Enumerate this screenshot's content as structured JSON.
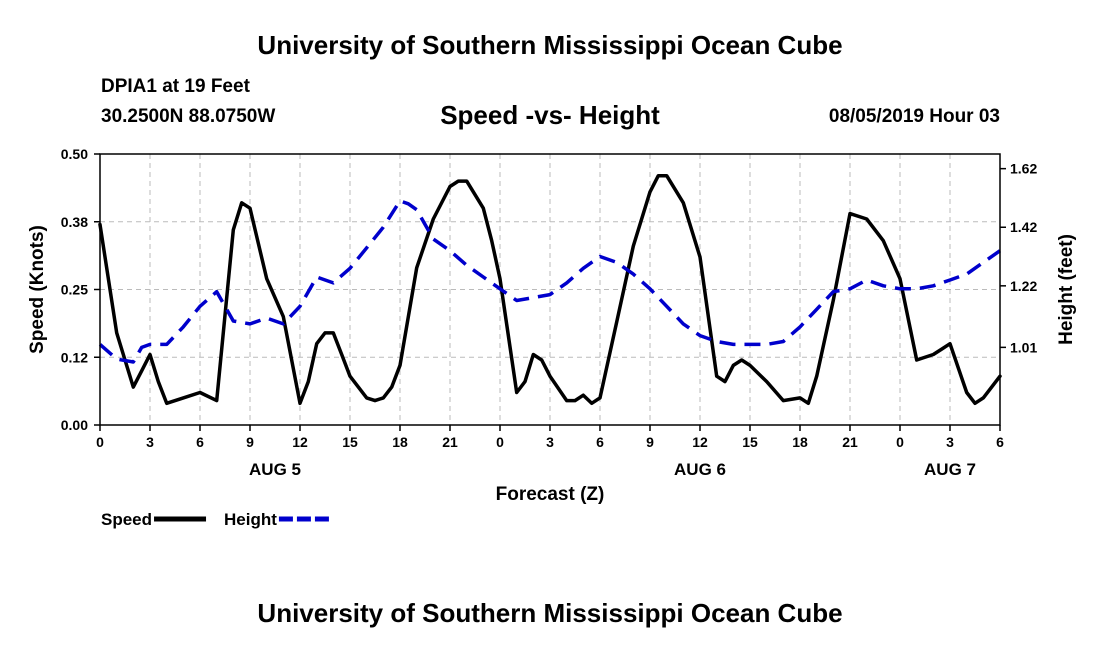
{
  "header": {
    "title": "University of Southern Mississippi Ocean Cube",
    "station": "DPIA1 at 19 Feet",
    "coords": "30.2500N 88.0750W",
    "datetime": "08/05/2019 Hour 03"
  },
  "footer": {
    "title": "University of Southern Mississippi Ocean Cube"
  },
  "chart_data": {
    "type": "line",
    "title": "Speed -vs- Height",
    "xlabel": "Forecast (Z)",
    "ylabel": "Speed (Knots)",
    "ylabel_right": "Height (feet)",
    "x_ticks": [
      "0",
      "3",
      "6",
      "9",
      "12",
      "15",
      "18",
      "21",
      "0",
      "3",
      "6",
      "9",
      "12",
      "15",
      "18",
      "21",
      "0",
      "3",
      "6"
    ],
    "x_tick_hours": [
      0,
      3,
      6,
      9,
      12,
      15,
      18,
      21,
      24,
      27,
      30,
      33,
      36,
      39,
      42,
      45,
      48,
      51,
      54
    ],
    "date_labels": [
      {
        "label": "AUG 5",
        "hour": 10.5
      },
      {
        "label": "AUG 6",
        "hour": 36
      },
      {
        "label": "AUG 7",
        "hour": 51
      }
    ],
    "xlim": [
      0,
      54
    ],
    "ylim": [
      0,
      0.5
    ],
    "y_ticks": [
      "0.00",
      "0.12",
      "0.25",
      "0.38",
      "0.50"
    ],
    "y_tick_values": [
      0,
      0.125,
      0.25,
      0.375,
      0.5
    ],
    "ylim_right": [
      0.745,
      1.67
    ],
    "y_ticks_right": [
      "1.01",
      "1.22",
      "1.42",
      "1.62"
    ],
    "y_tick_values_right": [
      1.01,
      1.22,
      1.42,
      1.62
    ],
    "grid": true,
    "legend": [
      {
        "name": "Speed",
        "color": "#000000",
        "style": "solid"
      },
      {
        "name": "Height",
        "color": "#0000cc",
        "style": "dashed"
      }
    ],
    "series": [
      {
        "name": "Speed",
        "axis": "left",
        "color": "#000000",
        "x": [
          0,
          1,
          2,
          2.5,
          3,
          3.5,
          4,
          5,
          6,
          7,
          8,
          8.5,
          9,
          10,
          11,
          12,
          12.5,
          13,
          13.5,
          14,
          14.5,
          15,
          16,
          16.5,
          17,
          17.5,
          18,
          19,
          20,
          21,
          21.5,
          22,
          23,
          23.5,
          24,
          25,
          25.5,
          26,
          26.5,
          27,
          28,
          28.5,
          29,
          29.5,
          30,
          31,
          32,
          33,
          33.5,
          34,
          35,
          36,
          37,
          37.5,
          38,
          38.5,
          39,
          40,
          41,
          42,
          42.5,
          43,
          44,
          45,
          46,
          47,
          48,
          49,
          50,
          50.5,
          51,
          52,
          52.5,
          53,
          54
        ],
        "values": [
          0.37,
          0.17,
          0.07,
          0.1,
          0.13,
          0.08,
          0.04,
          0.05,
          0.06,
          0.045,
          0.36,
          0.41,
          0.4,
          0.27,
          0.2,
          0.04,
          0.08,
          0.15,
          0.17,
          0.17,
          0.13,
          0.09,
          0.05,
          0.045,
          0.05,
          0.07,
          0.11,
          0.29,
          0.38,
          0.44,
          0.45,
          0.45,
          0.4,
          0.34,
          0.27,
          0.06,
          0.08,
          0.13,
          0.12,
          0.09,
          0.045,
          0.045,
          0.055,
          0.04,
          0.05,
          0.19,
          0.33,
          0.43,
          0.46,
          0.46,
          0.41,
          0.31,
          0.09,
          0.08,
          0.11,
          0.12,
          0.11,
          0.08,
          0.045,
          0.05,
          0.04,
          0.09,
          0.23,
          0.39,
          0.38,
          0.34,
          0.27,
          0.12,
          0.13,
          0.14,
          0.15,
          0.06,
          0.04,
          0.05,
          0.09
        ]
      },
      {
        "name": "Height",
        "axis": "right",
        "color": "#0000cc",
        "x": [
          0,
          1,
          2,
          2.5,
          3,
          4,
          5,
          6,
          7,
          8,
          9,
          10,
          11,
          12,
          13,
          14,
          15,
          16,
          17,
          18,
          18.5,
          19,
          20,
          21,
          22,
          23,
          24,
          25,
          26,
          27,
          28,
          29,
          30,
          31,
          32,
          33,
          34,
          35,
          36,
          37,
          38,
          39,
          40,
          41,
          42,
          43,
          44,
          45,
          46,
          47,
          48,
          49,
          50,
          51,
          52,
          53,
          54
        ],
        "values": [
          1.02,
          0.97,
          0.96,
          1.01,
          1.02,
          1.02,
          1.08,
          1.15,
          1.2,
          1.1,
          1.09,
          1.11,
          1.09,
          1.15,
          1.25,
          1.23,
          1.28,
          1.35,
          1.42,
          1.51,
          1.5,
          1.48,
          1.38,
          1.34,
          1.29,
          1.25,
          1.21,
          1.17,
          1.18,
          1.19,
          1.23,
          1.28,
          1.32,
          1.3,
          1.26,
          1.21,
          1.15,
          1.09,
          1.05,
          1.03,
          1.02,
          1.02,
          1.02,
          1.03,
          1.08,
          1.14,
          1.2,
          1.21,
          1.24,
          1.22,
          1.21,
          1.21,
          1.22,
          1.24,
          1.26,
          1.3,
          1.34
        ]
      }
    ]
  }
}
